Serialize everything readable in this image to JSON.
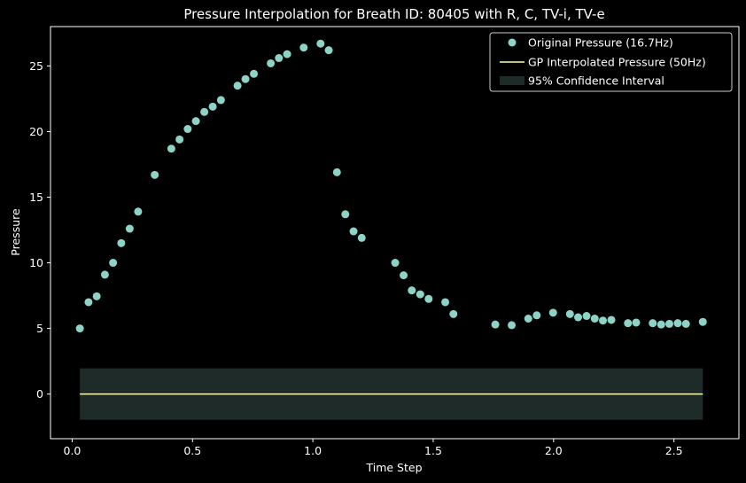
{
  "chart_data": {
    "type": "scatter",
    "title": "Pressure Interpolation for Breath ID: 80405 with R, C, TV-i, TV-e",
    "xlabel": "Time Step",
    "ylabel": "Pressure",
    "xlim": [
      -0.09,
      2.77
    ],
    "ylim": [
      -3.4,
      28.0
    ],
    "x_ticks": [
      0.0,
      0.5,
      1.0,
      1.5,
      2.0,
      2.5
    ],
    "x_tick_labels": [
      "0.0",
      "0.5",
      "1.0",
      "1.5",
      "2.0",
      "2.5"
    ],
    "y_ticks": [
      0,
      5,
      10,
      15,
      20,
      25
    ],
    "y_tick_labels": [
      "0",
      "5",
      "10",
      "15",
      "20",
      "25"
    ],
    "grid": false,
    "legend_position": "top-right",
    "background": "#000000",
    "series": [
      {
        "name": "Original Pressure (16.7Hz)",
        "kind": "scatter",
        "color": "#8dd3c7",
        "x": [
          0.032,
          0.068,
          0.102,
          0.136,
          0.17,
          0.204,
          0.239,
          0.274,
          0.343,
          0.412,
          0.446,
          0.48,
          0.514,
          0.549,
          0.584,
          0.618,
          0.687,
          0.72,
          0.755,
          0.825,
          0.859,
          0.893,
          0.962,
          1.032,
          1.066,
          1.1,
          1.135,
          1.169,
          1.203,
          1.342,
          1.377,
          1.411,
          1.446,
          1.481,
          1.55,
          1.584,
          1.758,
          1.826,
          1.895,
          1.93,
          1.998,
          2.068,
          2.102,
          2.137,
          2.171,
          2.205,
          2.24,
          2.309,
          2.343,
          2.412,
          2.447,
          2.481,
          2.516,
          2.55,
          2.62
        ],
        "y": [
          5.0,
          7.0,
          7.45,
          9.1,
          10.0,
          11.5,
          12.6,
          13.9,
          16.7,
          18.7,
          19.4,
          20.2,
          20.8,
          21.5,
          21.9,
          22.4,
          23.5,
          24.0,
          24.4,
          25.2,
          25.6,
          25.9,
          26.4,
          26.7,
          26.2,
          16.9,
          13.7,
          12.4,
          11.9,
          10.0,
          9.05,
          7.9,
          7.6,
          7.25,
          7.0,
          6.1,
          5.3,
          5.25,
          5.75,
          6.0,
          6.2,
          6.1,
          5.85,
          5.95,
          5.75,
          5.6,
          5.65,
          5.4,
          5.45,
          5.4,
          5.3,
          5.35,
          5.4,
          5.35,
          5.5
        ]
      },
      {
        "name": "GP Interpolated Pressure (50Hz)",
        "kind": "line",
        "color": "#ffffb3",
        "x": [
          0.032,
          2.62
        ],
        "y": [
          0.0,
          0.0
        ]
      },
      {
        "name": "95% Confidence Interval",
        "kind": "band",
        "color": "#1e2b28",
        "x": [
          0.032,
          2.62
        ],
        "y_low": [
          -1.96,
          -1.96
        ],
        "y_high": [
          1.96,
          1.96
        ]
      }
    ]
  }
}
